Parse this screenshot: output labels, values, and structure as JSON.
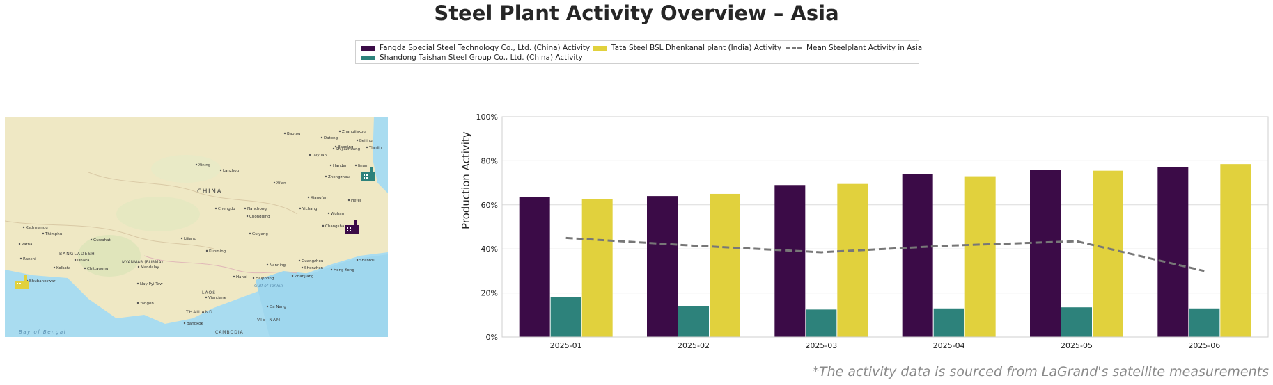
{
  "title": "Steel Plant Activity Overview – Asia",
  "footnote": "*The activity data is sourced from LaGrand's satellite measurements",
  "legend": {
    "items": [
      {
        "label": "Fangda Special Steel Technology Co., Ltd. (China) Activity",
        "color": "#3b0b47",
        "kind": "bar"
      },
      {
        "label": "Shandong Taishan Steel Group Co., Ltd. (China) Activity",
        "color": "#2d827b",
        "kind": "bar"
      },
      {
        "label": "Tata Steel BSL Dhenkanal plant (India) Activity",
        "color": "#e1d13d",
        "kind": "bar"
      },
      {
        "label": "Mean Steelplant Activity in Asia",
        "color": "#777777",
        "kind": "line"
      }
    ]
  },
  "map": {
    "labels": {
      "country_china": "CHINA",
      "bangladesh": "BANGLADESH",
      "myanmar": "MYANMAR (BURMA)",
      "laos": "LAOS",
      "thailand": "THAILAND",
      "vietnam": "VIETNAM",
      "cambodia": "CAMBODIA",
      "bay": "Bay of Bengal",
      "gulf": "Gulf of Tonkin",
      "cities": [
        "Baotou",
        "Zhangjiakou",
        "Datong",
        "Beijing",
        "Tianjin",
        "Taiyuan",
        "Shijiazhuang",
        "Baoding",
        "Handan",
        "Jinan",
        "Lanzhou",
        "Xining",
        "Zhengzhou",
        "Xi'an",
        "Chengdu",
        "Nanchong",
        "Chongqing",
        "Yichang",
        "Xiangfan",
        "Wuhan",
        "Changsha",
        "Hefei",
        "Guiyang",
        "Kunming",
        "Lijiang",
        "Nanning",
        "Guangzhou",
        "Shenzhen",
        "Hong Kong",
        "Shantou",
        "Haiphong",
        "Hanoi",
        "Zhanjiang",
        "Guwahati",
        "Dhaka",
        "Kolkata",
        "Chittagong",
        "Mandalay",
        "Nay Pyi Taw",
        "Yangon",
        "Vientiane",
        "Bangkok",
        "Da Nang",
        "Kathmandu",
        "Thimphu",
        "Patna",
        "Ranchi",
        "Bhubaneswar"
      ]
    },
    "markers": [
      {
        "name": "Shandong Taishan Steel",
        "color": "#2d827b"
      },
      {
        "name": "Fangda Special Steel",
        "color": "#3b0b47"
      },
      {
        "name": "Tata Steel BSL Dhenkanal",
        "color": "#e1d13d"
      }
    ]
  },
  "chart_data": {
    "type": "bar",
    "categories": [
      "2025-01",
      "2025-02",
      "2025-03",
      "2025-04",
      "2025-05",
      "2025-06"
    ],
    "series": [
      {
        "name": "Fangda Special Steel Technology Co., Ltd. (China) Activity",
        "color": "#3b0b47",
        "values": [
          63.5,
          64,
          69,
          74,
          76,
          77
        ]
      },
      {
        "name": "Shandong Taishan Steel Group Co., Ltd. (China) Activity",
        "color": "#2d827b",
        "values": [
          18,
          14,
          12.5,
          13,
          13.5,
          13
        ]
      },
      {
        "name": "Tata Steel BSL Dhenkanal plant (India) Activity",
        "color": "#e1d13d",
        "values": [
          62.5,
          65,
          69.5,
          73,
          75.5,
          78.5
        ]
      }
    ],
    "mean_line": {
      "name": "Mean Steelplant Activity in Asia",
      "color": "#777777",
      "style": "dashed",
      "values": [
        45,
        41.5,
        38.5,
        41.5,
        43.5,
        30
      ]
    },
    "ylabel": "Production Activity",
    "xlabel": "",
    "ylim": [
      0,
      100
    ],
    "yticks": [
      "0%",
      "20%",
      "40%",
      "60%",
      "80%",
      "100%"
    ],
    "grid": true,
    "legend_position": "top-center"
  }
}
